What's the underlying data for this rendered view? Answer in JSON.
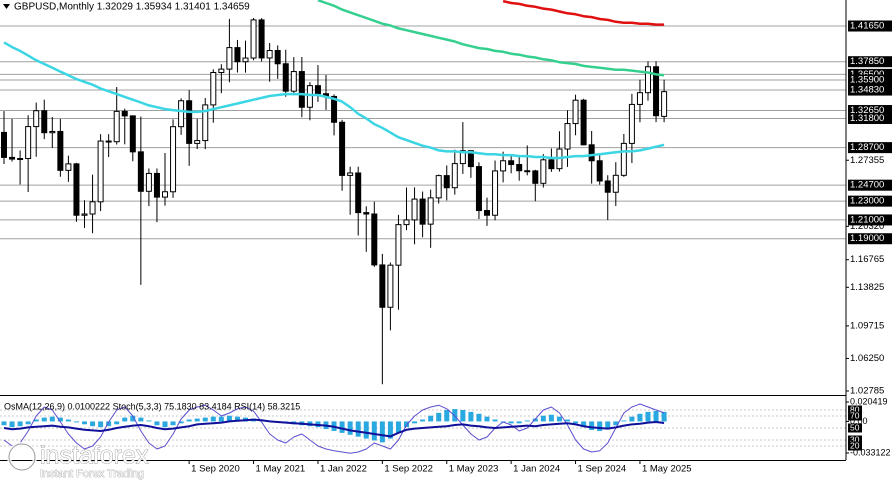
{
  "chart_data": [
    {
      "type": "candlestick",
      "title": "GBPUSD,Monthly  1.32029 1.35934 1.31401 1.34659",
      "categories": [
        null,
        null,
        null,
        null,
        null,
        null,
        null,
        null,
        null,
        null,
        null,
        null,
        null,
        null,
        null,
        null,
        null,
        null,
        null,
        null,
        null,
        null,
        null,
        "1 Sep 2020",
        null,
        null,
        null,
        null,
        null,
        null,
        null,
        "1 May 2021",
        null,
        null,
        null,
        null,
        null,
        null,
        null,
        "1 Jan 2022",
        null,
        null,
        null,
        null,
        null,
        null,
        null,
        "1 Sep 2022",
        null,
        null,
        null,
        null,
        null,
        null,
        null,
        "1 May 2023",
        null,
        null,
        null,
        null,
        null,
        null,
        null,
        "1 Jan 2024",
        null,
        null,
        null,
        null,
        null,
        null,
        null,
        "1 Sep 2024",
        null,
        null,
        null,
        null,
        null,
        null,
        null,
        "1 May 2025",
        null,
        null,
        null
      ],
      "open": [
        1.3032,
        1.2766,
        1.2748,
        1.2754,
        1.3094,
        1.3263,
        1.3029,
        1.3042,
        1.2628,
        1.2697,
        1.215,
        1.2163,
        1.2293,
        1.294,
        1.2933,
        1.3256,
        1.3208,
        1.2825,
        1.2405,
        1.2595,
        1.2343,
        1.24,
        1.3093,
        1.3369,
        1.2915,
        1.2945,
        1.3325,
        1.367,
        1.3706,
        1.3935,
        1.3785,
        1.3824,
        1.423,
        1.3825,
        1.3904,
        1.3763,
        1.3471,
        1.368,
        1.33,
        1.353,
        1.3444,
        1.3415,
        1.314,
        1.2574,
        1.26,
        1.2178,
        1.2163,
        1.1621,
        1.117,
        1.1618,
        1.205,
        1.21,
        1.2322,
        1.2055,
        1.2335,
        1.2572,
        1.2443,
        1.27,
        1.2837,
        1.2668,
        1.22,
        1.215,
        1.2622,
        1.273,
        1.269,
        1.2624,
        1.2622,
        1.249,
        1.274,
        1.2646,
        1.2855,
        1.3126,
        1.3375,
        1.29,
        1.273,
        1.2515,
        1.2395,
        1.2575,
        1.2915,
        1.333,
        1.3455,
        1.3731,
        1.32029
      ],
      "high": [
        1.3259,
        1.3176,
        1.284,
        1.3215,
        1.335,
        1.3381,
        1.3196,
        1.3176,
        1.2784,
        1.2708,
        1.2309,
        1.2582,
        1.3013,
        1.3013,
        1.3515,
        1.3285,
        1.3213,
        1.32,
        1.2648,
        1.2648,
        1.2813,
        1.3171,
        1.3395,
        1.3482,
        1.3176,
        1.3398,
        1.3704,
        1.3758,
        1.4241,
        1.4017,
        1.4009,
        1.425,
        1.4249,
        1.3984,
        1.3958,
        1.3913,
        1.3834,
        1.3835,
        1.3567,
        1.3749,
        1.3644,
        1.3437,
        1.3166,
        1.2667,
        1.2667,
        1.2245,
        1.2294,
        1.1738,
        1.1646,
        1.2154,
        1.2446,
        1.2447,
        1.2402,
        1.2423,
        1.2584,
        1.268,
        1.2848,
        1.3142,
        1.2841,
        1.2713,
        1.2337,
        1.2733,
        1.2827,
        1.2785,
        1.2773,
        1.2893,
        1.2634,
        1.2801,
        1.2861,
        1.3044,
        1.3266,
        1.3434,
        1.339,
        1.3047,
        1.2811,
        1.2576,
        1.2715,
        1.3015,
        1.3443,
        1.3593,
        1.3789,
        1.3789,
        1.35934
      ],
      "low": [
        1.2695,
        1.2722,
        1.2477,
        1.2397,
        1.2773,
        1.296,
        1.2866,
        1.256,
        1.2506,
        1.208,
        1.2015,
        1.1959,
        1.2194,
        1.2769,
        1.2903,
        1.2905,
        1.2725,
        1.1409,
        1.2247,
        1.2076,
        1.2252,
        1.2335,
        1.3006,
        1.2676,
        1.2855,
        1.2854,
        1.3135,
        1.345,
        1.3566,
        1.367,
        1.3669,
        1.38,
        1.3787,
        1.3572,
        1.3602,
        1.3412,
        1.3434,
        1.3194,
        1.3161,
        1.3357,
        1.3272,
        1.3,
        1.2411,
        1.2155,
        1.1934,
        1.176,
        1.16,
        1.035,
        1.0924,
        1.1144,
        1.1992,
        1.1841,
        1.1915,
        1.1803,
        1.2275,
        1.2308,
        1.2369,
        1.259,
        1.2548,
        1.211,
        1.2037,
        1.2096,
        1.25,
        1.2597,
        1.2518,
        1.2575,
        1.23,
        1.2445,
        1.2612,
        1.2615,
        1.2665,
        1.3002,
        1.2895,
        1.2487,
        1.2475,
        1.21,
        1.2249,
        1.2558,
        1.2706,
        1.314,
        1.3371,
        1.3141,
        1.31401
      ],
      "close": [
        1.2766,
        1.2748,
        1.2754,
        1.3094,
        1.3263,
        1.3029,
        1.3042,
        1.2628,
        1.2697,
        1.215,
        1.2163,
        1.2293,
        1.294,
        1.2933,
        1.3256,
        1.3208,
        1.2825,
        1.2405,
        1.2595,
        1.2343,
        1.24,
        1.3093,
        1.3369,
        1.2915,
        1.2945,
        1.3325,
        1.367,
        1.3706,
        1.3935,
        1.3785,
        1.3824,
        1.423,
        1.3825,
        1.3904,
        1.3763,
        1.3471,
        1.368,
        1.33,
        1.353,
        1.3444,
        1.3415,
        1.314,
        1.2574,
        1.26,
        1.2178,
        1.2163,
        1.1621,
        1.117,
        1.1618,
        1.205,
        1.21,
        1.2322,
        1.2055,
        1.2335,
        1.2572,
        1.2443,
        1.27,
        1.2837,
        1.2668,
        1.22,
        1.215,
        1.2622,
        1.273,
        1.269,
        1.2624,
        1.2622,
        1.249,
        1.274,
        1.2646,
        1.2855,
        1.3126,
        1.3375,
        1.29,
        1.273,
        1.2515,
        1.2395,
        1.2575,
        1.2915,
        1.333,
        1.3455,
        1.3731,
        1.321,
        1.34659
      ],
      "series": [
        {
          "color": "#3cd5e4",
          "values": [
            1.399,
            1.394,
            1.39,
            1.385,
            1.38,
            1.376,
            1.372,
            1.368,
            1.364,
            1.36,
            1.357,
            1.354,
            1.35,
            1.347,
            1.344,
            1.341,
            1.338,
            1.335,
            1.332,
            1.33,
            1.328,
            1.327,
            1.326,
            1.325,
            1.325,
            1.326,
            1.328,
            1.33,
            1.332,
            1.334,
            1.336,
            1.338,
            1.34,
            1.342,
            1.343,
            1.344,
            1.344,
            1.344,
            1.343,
            1.343,
            1.341,
            1.339,
            1.336,
            1.33,
            1.323,
            1.318,
            1.312,
            1.308,
            1.303,
            1.298,
            1.295,
            1.292,
            1.289,
            1.287,
            1.284,
            1.283,
            1.283,
            1.282,
            1.282,
            1.281,
            1.28,
            1.28,
            1.279,
            1.279,
            1.278,
            1.278,
            1.277,
            1.277,
            1.276,
            1.276,
            1.277,
            1.278,
            1.278,
            1.279,
            1.28,
            1.281,
            1.282,
            1.283,
            1.283,
            1.284,
            1.286,
            1.288,
            1.29
          ]
        },
        {
          "color": "#35d08f",
          "values": [
            null,
            null,
            null,
            null,
            null,
            null,
            null,
            null,
            null,
            null,
            null,
            null,
            null,
            null,
            null,
            null,
            null,
            null,
            null,
            null,
            null,
            null,
            null,
            null,
            null,
            null,
            null,
            null,
            null,
            null,
            null,
            null,
            null,
            null,
            null,
            null,
            null,
            null,
            null,
            1.444,
            1.441,
            1.438,
            1.434,
            1.431,
            1.428,
            1.425,
            1.422,
            1.419,
            1.417,
            1.414,
            1.412,
            1.41,
            1.408,
            1.406,
            1.404,
            1.402,
            1.4,
            1.397,
            1.395,
            1.393,
            1.392,
            1.39,
            1.389,
            1.387,
            1.386,
            1.384,
            1.383,
            1.381,
            1.38,
            1.378,
            1.377,
            1.376,
            1.374,
            1.373,
            1.372,
            1.371,
            1.37,
            1.37,
            1.369,
            1.368,
            1.367,
            1.365,
            1.364
          ]
        },
        {
          "color": "#e01010",
          "values": [
            null,
            null,
            null,
            null,
            null,
            null,
            null,
            null,
            null,
            null,
            null,
            null,
            null,
            null,
            null,
            null,
            null,
            null,
            null,
            null,
            null,
            null,
            null,
            null,
            null,
            null,
            null,
            null,
            null,
            null,
            null,
            null,
            null,
            null,
            null,
            null,
            null,
            null,
            null,
            null,
            null,
            null,
            null,
            null,
            null,
            null,
            null,
            null,
            null,
            null,
            null,
            null,
            null,
            null,
            null,
            null,
            null,
            null,
            null,
            null,
            null,
            null,
            1.443,
            1.441,
            1.44,
            1.438,
            1.437,
            1.435,
            1.434,
            1.432,
            1.43,
            1.429,
            1.427,
            1.426,
            1.424,
            1.423,
            1.421,
            1.42,
            1.42,
            1.419,
            1.419,
            1.418,
            1.418
          ]
        }
      ],
      "ylim": [
        1.0257,
        1.4442
      ],
      "yticks": [
        1.27355,
        {
          "value": 1.2032,
          "label": "1.20320"
        },
        1.16765,
        {
          "value": 1.13825,
          "label": "1.13825"
        },
        1.09715,
        {
          "value": 1.0625,
          "label": "1.06250"
        },
        1.02785
      ],
      "level_ticks": [
        {
          "value": 1.4165,
          "label": "1.41650"
        },
        {
          "value": 1.3785,
          "label": "1.37850"
        },
        {
          "value": 1.365,
          "label": "1.36500"
        },
        {
          "value": 1.359,
          "label": "1.35900"
        },
        {
          "value": 1.3483,
          "label": "1.34830"
        },
        {
          "value": 1.3265,
          "label": "1.32650"
        },
        {
          "value": 1.318,
          "label": "1.31800"
        },
        {
          "value": 1.287,
          "label": "1.28700"
        },
        {
          "value": 1.247,
          "label": "1.24700"
        },
        {
          "value": 1.23,
          "label": "1.23000"
        },
        {
          "value": 1.21,
          "label": "1.21000"
        },
        {
          "value": 1.19,
          "label": "1.19000"
        }
      ],
      "up_color": "#ffffff",
      "down_color": "#000000",
      "grid": false
    },
    {
      "type": "oscillator",
      "title": "OsMA(12,26,9) 0.0100222 Stoch(5,3,3) 75.1830 83.4184 RSI(14) 58.3215",
      "ylim": [
        -0.0384,
        0.0246
      ],
      "yticks": [
        0.020419,
        {
          "value": 0,
          "label": "0.00"
        },
        -0.033122
      ],
      "y2lim": [
        0,
        100
      ],
      "y2ticks": [
        80,
        70,
        50,
        30,
        20
      ],
      "series": [
        {
          "type": "bar",
          "color": "#2aa8e0",
          "values": [
            -0.004,
            -0.006,
            -0.005,
            -0.003,
            0.002,
            0.004,
            0.005,
            0.004,
            0.002,
            -0.001,
            -0.003,
            -0.005,
            -0.006,
            -0.005,
            -0.003,
            0.004,
            0.006,
            0.004,
            0.001,
            -0.004,
            -0.006,
            -0.004,
            -0.002,
            0.002,
            0.003,
            0.004,
            0.005,
            0.005,
            0.006,
            0.005,
            0.004,
            0.003,
            0.002,
            0.001,
            -0.001,
            -0.002,
            -0.003,
            -0.004,
            -0.005,
            -0.006,
            -0.008,
            -0.01,
            -0.012,
            -0.014,
            -0.016,
            -0.018,
            -0.02,
            -0.022,
            -0.018,
            -0.012,
            -0.006,
            -0.002,
            0.002,
            0.006,
            0.009,
            0.012,
            0.013,
            0.012,
            0.01,
            0.008,
            0.005,
            0.002,
            -0.001,
            -0.002,
            -0.002,
            0.001,
            0.003,
            0.006,
            0.007,
            0.005,
            0.002,
            -0.002,
            -0.006,
            -0.009,
            -0.01,
            -0.008,
            -0.004,
            0.001,
            0.005,
            0.008,
            0.01,
            0.011,
            0.0100222
          ]
        },
        {
          "type": "line",
          "axis": "y2",
          "color": "#5a4fd0",
          "values": [
            30,
            20,
            25,
            45,
            70,
            85,
            80,
            60,
            40,
            25,
            15,
            20,
            35,
            60,
            80,
            85,
            70,
            45,
            25,
            15,
            20,
            40,
            65,
            80,
            85,
            88,
            80,
            70,
            75,
            82,
            85,
            78,
            60,
            40,
            30,
            25,
            35,
            40,
            30,
            20,
            15,
            12,
            10,
            8,
            10,
            15,
            25,
            20,
            15,
            30,
            55,
            70,
            80,
            85,
            88,
            82,
            70,
            55,
            40,
            30,
            35,
            50,
            60,
            55,
            45,
            50,
            65,
            80,
            85,
            75,
            55,
            30,
            15,
            10,
            12,
            25,
            50,
            75,
            85,
            90,
            85,
            80,
            75.183
          ]
        },
        {
          "type": "line",
          "axis": "y2",
          "color": "#10109a",
          "values": [
            50,
            48,
            49,
            51,
            52,
            53,
            54,
            52,
            51,
            49,
            47,
            46,
            45,
            47,
            50,
            52,
            54,
            55,
            53,
            50,
            48,
            49,
            51,
            53,
            56,
            57,
            58,
            59,
            61,
            62,
            63,
            64,
            63,
            61,
            60,
            59,
            58,
            57,
            56,
            55,
            54,
            52,
            49,
            46,
            44,
            42,
            40,
            38,
            36,
            42,
            47,
            49,
            50,
            51,
            52,
            53,
            55,
            56,
            54,
            53,
            51,
            50,
            51,
            52,
            53,
            54,
            53,
            55,
            56,
            57,
            58,
            56,
            53,
            51,
            50,
            49,
            51,
            54,
            56,
            57,
            59,
            60,
            58.3215
          ]
        }
      ]
    }
  ],
  "logo": {
    "name": "instaforex",
    "tagline": "Instant Forex Trading"
  }
}
